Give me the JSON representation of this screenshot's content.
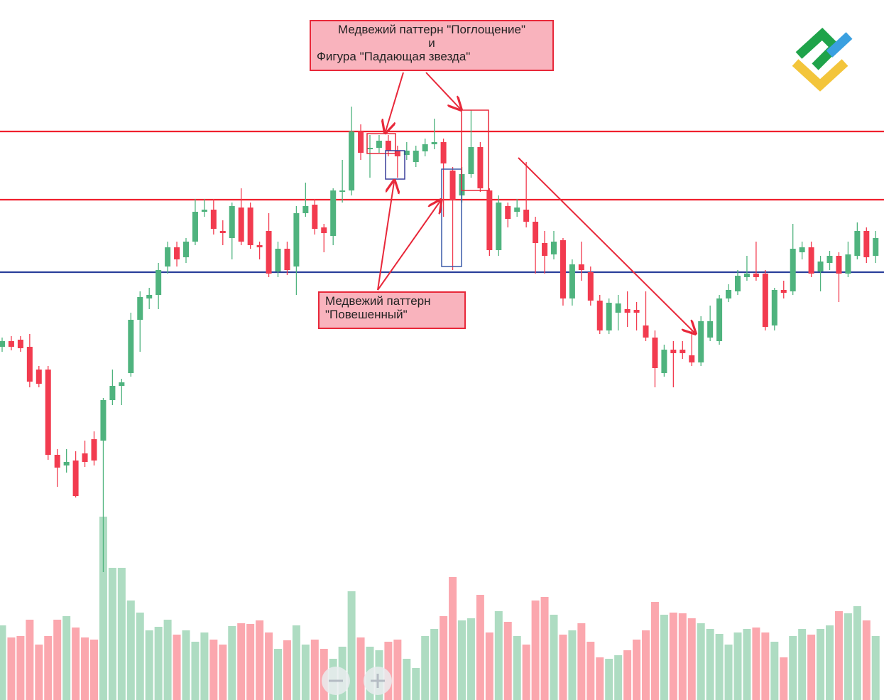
{
  "chart_data": {
    "type": "candlestick",
    "open": [
      497,
      505,
      507,
      497,
      465,
      465,
      345,
      330,
      337,
      347,
      367,
      365,
      422,
      442,
      460,
      535,
      565,
      570,
      610,
      637,
      623,
      645,
      687,
      690,
      660,
      650,
      693,
      693,
      640,
      660,
      603,
      635,
      610,
      685,
      697,
      665,
      653,
      715,
      717,
      800,
      775,
      777,
      787,
      773,
      767,
      757,
      772,
      782,
      785,
      745,
      710,
      740,
      778,
      717,
      633,
      695,
      687,
      690,
      673,
      643,
      627,
      647,
      565,
      613,
      602,
      562,
      520,
      545,
      550,
      549,
      527,
      510,
      460,
      493,
      493,
      485,
      475,
      510,
      505,
      565,
      575,
      595,
      600,
      600,
      527,
      577,
      575,
      630,
      637,
      603,
      615,
      625,
      600,
      625,
      660,
      625
    ],
    "high": [
      510,
      512,
      512,
      515,
      470,
      470,
      353,
      353,
      350,
      365,
      378,
      425,
      465,
      452,
      545,
      575,
      580,
      615,
      645,
      645,
      650,
      705,
      705,
      705,
      675,
      700,
      720,
      700,
      645,
      685,
      645,
      645,
      695,
      728,
      705,
      670,
      720,
      760,
      835,
      810,
      795,
      795,
      795,
      780,
      785,
      780,
      790,
      818,
      790,
      750,
      750,
      830,
      785,
      720,
      710,
      700,
      705,
      757,
      680,
      660,
      660,
      650,
      620,
      645,
      610,
      570,
      565,
      570,
      575,
      560,
      575,
      520,
      500,
      505,
      505,
      520,
      540,
      555,
      570,
      585,
      605,
      625,
      645,
      605,
      580,
      590,
      670,
      645,
      645,
      625,
      632,
      630,
      645,
      672,
      665,
      660
    ],
    "low": [
      490,
      492,
      490,
      440,
      440,
      338,
      300,
      320,
      285,
      328,
      330,
      180,
      415,
      415,
      455,
      490,
      550,
      550,
      600,
      610,
      615,
      640,
      680,
      655,
      640,
      620,
      640,
      635,
      620,
      595,
      595,
      598,
      570,
      680,
      655,
      630,
      640,
      700,
      710,
      760,
      735,
      770,
      765,
      735,
      760,
      750,
      765,
      775,
      680,
      605,
      700,
      735,
      715,
      625,
      625,
      665,
      680,
      665,
      600,
      600,
      620,
      555,
      555,
      590,
      555,
      515,
      515,
      520,
      525,
      520,
      505,
      440,
      455,
      440,
      480,
      470,
      470,
      505,
      500,
      560,
      570,
      590,
      590,
      520,
      520,
      565,
      570,
      620,
      595,
      575,
      605,
      560,
      595,
      620,
      615,
      615
    ],
    "close": [
      505,
      497,
      495,
      448,
      445,
      345,
      327,
      335,
      287,
      335,
      337,
      422,
      442,
      447,
      535,
      567,
      570,
      605,
      637,
      620,
      645,
      687,
      690,
      663,
      657,
      695,
      645,
      640,
      637,
      600,
      635,
      605,
      685,
      695,
      663,
      657,
      717,
      717,
      800,
      770,
      777,
      787,
      773,
      765,
      773,
      773,
      782,
      785,
      755,
      703,
      740,
      778,
      720,
      633,
      700,
      677,
      693,
      673,
      643,
      625,
      645,
      565,
      613,
      605,
      562,
      520,
      559,
      558,
      545,
      545,
      510,
      467,
      493,
      488,
      488,
      475,
      533,
      533,
      565,
      577,
      597,
      600,
      595,
      525,
      577,
      573,
      635,
      637,
      600,
      617,
      625,
      600,
      627,
      660,
      623,
      650
    ],
    "volume": [
      105,
      88,
      90,
      113,
      78,
      90,
      113,
      118,
      102,
      88,
      85,
      258,
      186,
      186,
      140,
      123,
      98,
      103,
      113,
      92,
      98,
      82,
      95,
      85,
      78,
      104,
      108,
      107,
      112,
      95,
      72,
      84,
      105,
      78,
      85,
      72,
      58,
      75,
      153,
      88,
      75,
      70,
      82,
      85,
      58,
      45,
      90,
      100,
      118,
      173,
      112,
      115,
      148,
      95,
      125,
      110,
      90,
      78,
      140,
      145,
      120,
      92,
      98,
      108,
      82,
      60,
      58,
      63,
      70,
      85,
      98,
      138,
      120,
      123,
      122,
      115,
      108,
      100,
      93,
      78,
      95,
      100,
      102,
      95,
      82,
      60,
      90,
      100,
      92,
      100,
      105,
      125,
      122,
      132,
      112,
      90
    ],
    "up_color": "#4fb37e",
    "down_color": "#f23b4f",
    "volume_up_color": "#aedcc2",
    "volume_down_color": "#fba7ae",
    "ylim": [
      0,
      985
    ],
    "y2lim": [
      0,
      985
    ],
    "levels": [
      {
        "value": 800,
        "color": "#f0202e"
      },
      {
        "value": 704,
        "color": "#f0202e"
      },
      {
        "value": 602,
        "color": "#2a3f9a"
      }
    ],
    "annotations": [
      {
        "lines": [
          "Медвежий паттерн \"Поглощение\"",
          "и",
          "Фигура \"Падающая звезда\""
        ]
      },
      {
        "lines": [
          "Медвежий паттерн",
          "\"Повешенный\""
        ]
      }
    ]
  }
}
